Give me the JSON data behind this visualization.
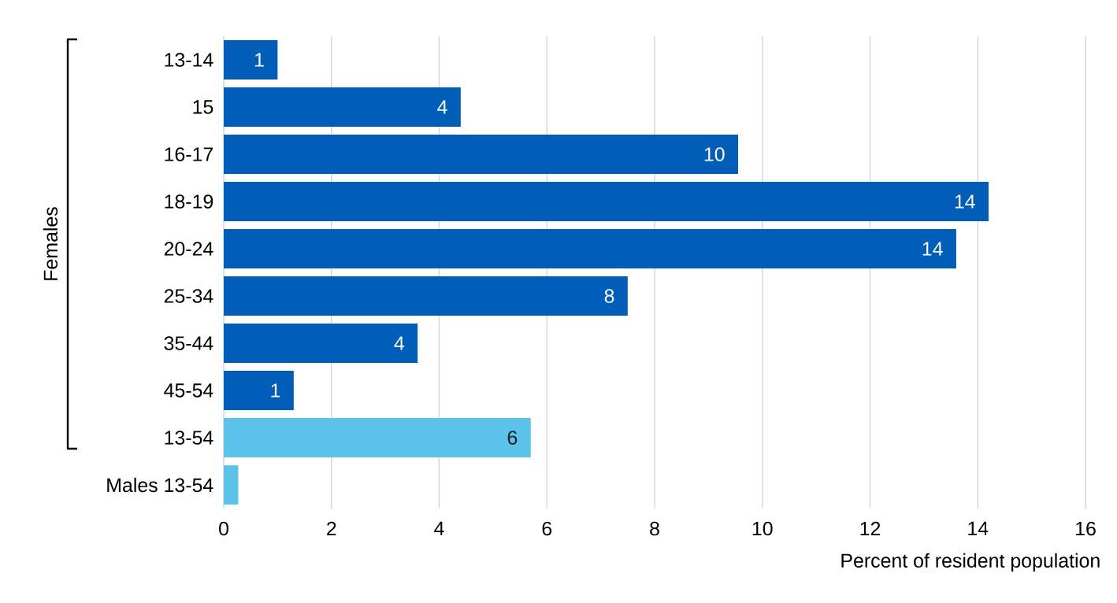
{
  "chart_data": {
    "type": "bar",
    "orientation": "horizontal",
    "categories": [
      "13-14",
      "15",
      "16-17",
      "18-19",
      "20-24",
      "25-34",
      "35-44",
      "45-54",
      "13-54",
      "Males 13-54"
    ],
    "values": [
      1.0,
      4.4,
      9.55,
      14.2,
      13.6,
      7.5,
      3.6,
      1.3,
      5.7,
      0.27
    ],
    "colors": [
      "#005eb8",
      "#005eb8",
      "#005eb8",
      "#005eb8",
      "#005eb8",
      "#005eb8",
      "#005eb8",
      "#005eb8",
      "#5bc2e9",
      "#5bc2e9"
    ],
    "value_labels": [
      "1",
      "4",
      "10",
      "14",
      "14",
      "8",
      "4",
      "1",
      "6",
      null
    ],
    "xlim": [
      0,
      16
    ],
    "xticks": [
      0,
      2,
      4,
      6,
      8,
      10,
      12,
      14,
      16
    ],
    "xlabel": "Percent of resident population",
    "annotations": [
      "Females"
    ],
    "grid": "x"
  }
}
